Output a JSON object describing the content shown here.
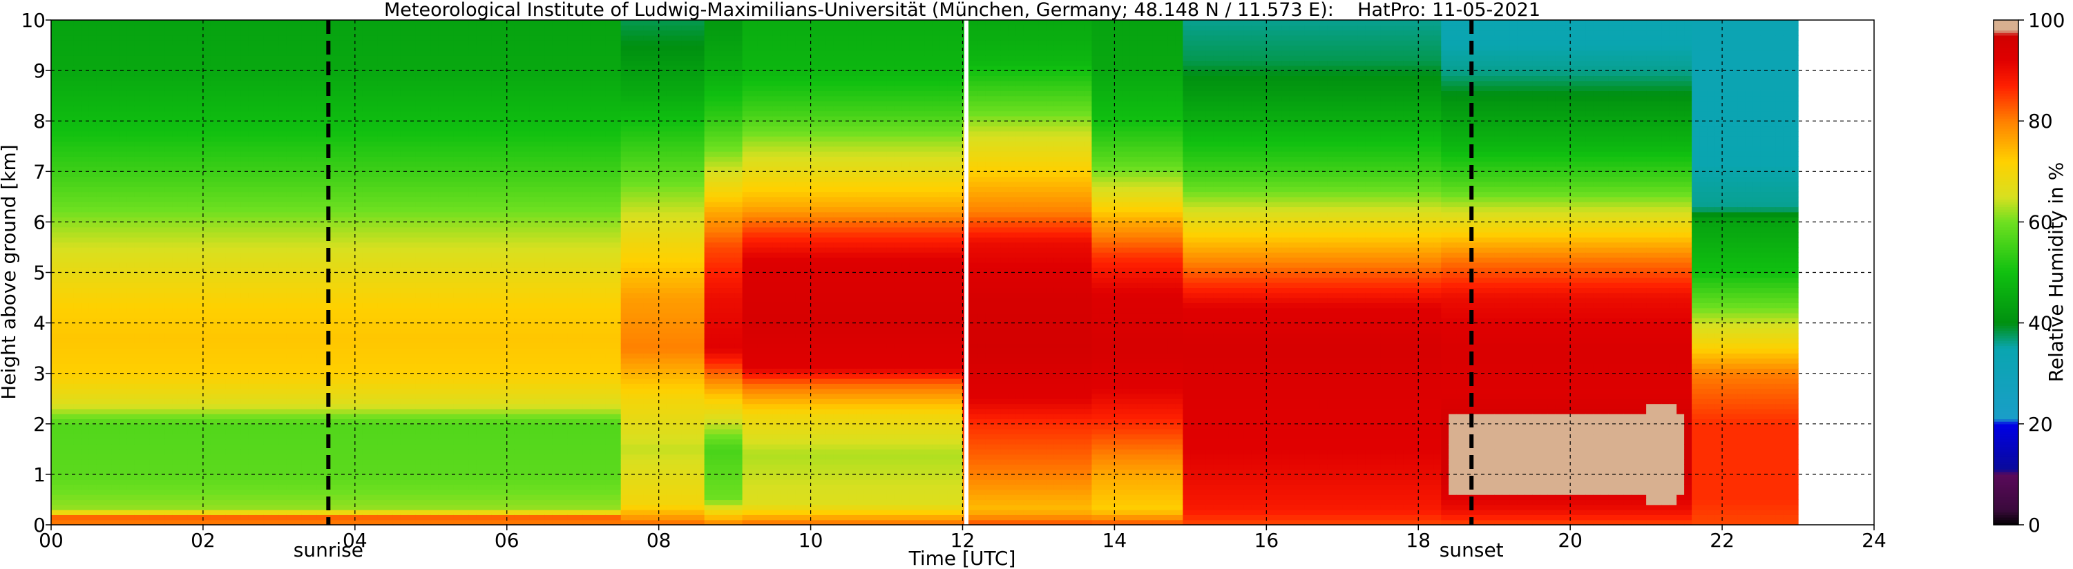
{
  "chart_data": {
    "type": "heatmap",
    "title": "Meteorological Institute of Ludwig-Maximilians-Universität (München, Germany; 48.148 N / 11.573 E):    HatPro: 11-05-2021",
    "xlabel": "Time [UTC]",
    "ylabel": "Height above ground [km]",
    "colorbar_label": "Relative Humidity in %",
    "xlim": [
      0,
      24
    ],
    "ylim": [
      0,
      10
    ],
    "x_ticks": [
      "00",
      "02",
      "04",
      "06",
      "08",
      "10",
      "12",
      "14",
      "16",
      "18",
      "20",
      "22",
      "24"
    ],
    "x_tick_values": [
      0,
      2,
      4,
      6,
      8,
      10,
      12,
      14,
      16,
      18,
      20,
      22,
      24
    ],
    "y_ticks": [
      "0",
      "1",
      "2",
      "3",
      "4",
      "5",
      "6",
      "7",
      "8",
      "9",
      "10"
    ],
    "y_tick_values": [
      0,
      1,
      2,
      3,
      4,
      5,
      6,
      7,
      8,
      9,
      10
    ],
    "colorbar_ticks": [
      "0",
      "20",
      "40",
      "60",
      "80",
      "100"
    ],
    "colorbar_tick_values": [
      0,
      20,
      40,
      60,
      80,
      100
    ],
    "data_end_time": 23.0,
    "grid": true,
    "vertical_markers": [
      {
        "label": "sunrise",
        "time": 3.65,
        "style": "black-dashed"
      },
      {
        "label": "sunset",
        "time": 18.7,
        "style": "black-dashed"
      },
      {
        "label": "",
        "time": 12.05,
        "style": "white-solid"
      }
    ],
    "colormap": [
      {
        "value": 0,
        "color": "#000000"
      },
      {
        "value": 3,
        "color": "#3a0a3c"
      },
      {
        "value": 10,
        "color": "#5a0a5a"
      },
      {
        "value": 11,
        "color": "#0a0a9a"
      },
      {
        "value": 20,
        "color": "#0000e6"
      },
      {
        "value": 21,
        "color": "#1a9ec8"
      },
      {
        "value": 35,
        "color": "#0aa5b0"
      },
      {
        "value": 40,
        "color": "#009010"
      },
      {
        "value": 50,
        "color": "#10c010"
      },
      {
        "value": 60,
        "color": "#6ee020"
      },
      {
        "value": 65,
        "color": "#d8e020"
      },
      {
        "value": 72,
        "color": "#ffd000"
      },
      {
        "value": 80,
        "color": "#ff8000"
      },
      {
        "value": 87,
        "color": "#ff2000"
      },
      {
        "value": 92,
        "color": "#e00000"
      },
      {
        "value": 97,
        "color": "#d00000"
      },
      {
        "value": 98,
        "color": "#d8b090"
      },
      {
        "value": 100,
        "color": "#d8b090"
      }
    ],
    "rh_segments": [
      {
        "t0": 0.0,
        "t1": 7.5,
        "profile": [
          [
            0,
            80
          ],
          [
            0.15,
            82
          ],
          [
            0.3,
            62
          ],
          [
            1.0,
            58
          ],
          [
            2.0,
            57
          ],
          [
            2.4,
            66
          ],
          [
            3.0,
            72
          ],
          [
            3.7,
            73
          ],
          [
            4.3,
            72
          ],
          [
            5.0,
            68
          ],
          [
            5.8,
            63
          ],
          [
            6.8,
            56
          ],
          [
            7.8,
            50
          ],
          [
            9.0,
            45
          ],
          [
            10,
            44
          ]
        ]
      },
      {
        "t0": 7.5,
        "t1": 8.6,
        "profile": [
          [
            0,
            82
          ],
          [
            0.4,
            70
          ],
          [
            1.5,
            64
          ],
          [
            2.5,
            70
          ],
          [
            3.5,
            80
          ],
          [
            4.5,
            77
          ],
          [
            5.5,
            70
          ],
          [
            6.5,
            62
          ],
          [
            7.5,
            54
          ],
          [
            8.5,
            46
          ],
          [
            9.5,
            40
          ],
          [
            10,
            38
          ]
        ]
      },
      {
        "t0": 8.6,
        "t1": 9.1,
        "profile": [
          [
            0,
            80
          ],
          [
            0.5,
            60
          ],
          [
            1.5,
            56
          ],
          [
            2.5,
            72
          ],
          [
            3.5,
            92
          ],
          [
            4.5,
            90
          ],
          [
            5.5,
            84
          ],
          [
            6.2,
            76
          ],
          [
            7.0,
            65
          ],
          [
            8.0,
            54
          ],
          [
            9.0,
            46
          ],
          [
            10,
            42
          ]
        ]
      },
      {
        "t0": 9.1,
        "t1": 12.0,
        "profile": [
          [
            0,
            82
          ],
          [
            0.4,
            66
          ],
          [
            1.4,
            63
          ],
          [
            2.2,
            70
          ],
          [
            2.8,
            82
          ],
          [
            3.1,
            92
          ],
          [
            4.0,
            95
          ],
          [
            5.2,
            93
          ],
          [
            5.8,
            85
          ],
          [
            6.3,
            76
          ],
          [
            7.0,
            68
          ],
          [
            7.6,
            62
          ],
          [
            8.2,
            55
          ],
          [
            9.0,
            48
          ],
          [
            10,
            46
          ]
        ]
      },
      {
        "t0": 12.0,
        "t1": 13.7,
        "profile": [
          [
            0,
            84
          ],
          [
            0.3,
            74
          ],
          [
            1.0,
            80
          ],
          [
            2.0,
            86
          ],
          [
            2.5,
            92
          ],
          [
            3.5,
            96
          ],
          [
            4.5,
            95
          ],
          [
            5.6,
            90
          ],
          [
            6.2,
            80
          ],
          [
            7.0,
            72
          ],
          [
            7.8,
            64
          ],
          [
            8.5,
            56
          ],
          [
            9.2,
            48
          ],
          [
            10,
            45
          ]
        ]
      },
      {
        "t0": 13.7,
        "t1": 14.9,
        "profile": [
          [
            0,
            84
          ],
          [
            0.3,
            72
          ],
          [
            1.0,
            76
          ],
          [
            2.0,
            86
          ],
          [
            2.7,
            92
          ],
          [
            3.5,
            95
          ],
          [
            4.5,
            93
          ],
          [
            5.3,
            86
          ],
          [
            6.0,
            76
          ],
          [
            6.6,
            66
          ],
          [
            7.2,
            58
          ],
          [
            8.0,
            50
          ],
          [
            9.0,
            45
          ],
          [
            10,
            44
          ]
        ]
      },
      {
        "t0": 14.9,
        "t1": 18.3,
        "profile": [
          [
            0,
            84
          ],
          [
            0.3,
            88
          ],
          [
            1.5,
            92
          ],
          [
            2.5,
            93
          ],
          [
            3.5,
            95
          ],
          [
            4.3,
            92
          ],
          [
            4.9,
            84
          ],
          [
            5.6,
            74
          ],
          [
            6.3,
            64
          ],
          [
            7.0,
            55
          ],
          [
            7.8,
            48
          ],
          [
            8.6,
            42
          ],
          [
            9.2,
            38
          ],
          [
            10,
            36
          ]
        ]
      },
      {
        "t0": 18.3,
        "t1": 21.6,
        "profile": [
          [
            0,
            84
          ],
          [
            0.3,
            90
          ],
          [
            1.0,
            96
          ],
          [
            2.0,
            96
          ],
          [
            2.6,
            93
          ],
          [
            3.5,
            94
          ],
          [
            4.5,
            90
          ],
          [
            5.3,
            80
          ],
          [
            6.0,
            68
          ],
          [
            6.8,
            56
          ],
          [
            7.5,
            48
          ],
          [
            8.3,
            42
          ],
          [
            9.0,
            36
          ],
          [
            10,
            34
          ]
        ]
      },
      {
        "t0": 21.6,
        "t1": 23.0,
        "profile": [
          [
            0,
            84
          ],
          [
            0.5,
            86
          ],
          [
            2.0,
            86
          ],
          [
            3.0,
            80
          ],
          [
            3.6,
            70
          ],
          [
            4.3,
            60
          ],
          [
            5.0,
            50
          ],
          [
            6.0,
            44
          ],
          [
            6.3,
            36
          ],
          [
            8.0,
            34
          ],
          [
            10,
            33
          ]
        ]
      }
    ],
    "saturated_regions": [
      {
        "t0": 18.4,
        "t1": 21.5,
        "z0": 0.6,
        "z1": 2.2
      },
      {
        "t0": 21.0,
        "t1": 21.45,
        "z0": 0.4,
        "z1": 2.4
      }
    ]
  }
}
